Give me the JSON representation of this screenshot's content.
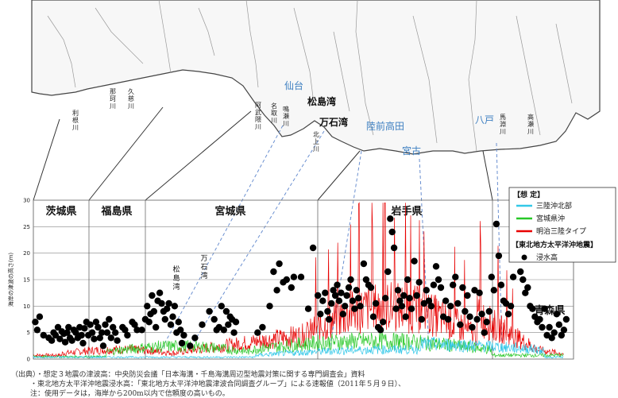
{
  "map": {
    "places": [
      {
        "id": "sendai",
        "text": "仙台",
        "color": "#3d7fc1"
      },
      {
        "id": "matsushima",
        "text": "松島湾",
        "color": "#111"
      },
      {
        "id": "mangoku",
        "text": "万石湾",
        "color": "#111"
      },
      {
        "id": "rikuzen",
        "text": "陸前高田",
        "color": "#3d7fc1"
      },
      {
        "id": "miyako",
        "text": "宮古",
        "color": "#3d7fc1"
      },
      {
        "id": "hachinohe",
        "text": "八戸",
        "color": "#3d7fc1"
      }
    ],
    "rivers": [
      {
        "id": "tone",
        "text": "利根川"
      },
      {
        "id": "naka",
        "text": "那珂川"
      },
      {
        "id": "kuji",
        "text": "久慈川"
      },
      {
        "id": "abukuma",
        "text": "阿武隈川"
      },
      {
        "id": "natori",
        "text": "名取川"
      },
      {
        "id": "naruse",
        "text": "鳴瀬川"
      },
      {
        "id": "kitakami",
        "text": "北上川"
      },
      {
        "id": "mabechi",
        "text": "馬淵川"
      },
      {
        "id": "takase",
        "text": "高瀬川"
      }
    ]
  },
  "chart_data": {
    "type": "scatter",
    "ylabel": "海岸の津波の高さ(m)",
    "ylim": [
      0,
      30
    ],
    "yticks": [
      0,
      5,
      10,
      15,
      20,
      25,
      30
    ],
    "prefectures": [
      "茨城県",
      "福島県",
      "宮城県",
      "岩手県",
      "青森県"
    ],
    "bay_labels": [
      "松島湾",
      "万石湾"
    ],
    "legend": {
      "group1": "【想 定】",
      "group2": "【東北地方太平洋沖地震】",
      "items": [
        {
          "name": "三陸沖北部",
          "color": "#33c8e8",
          "kind": "line"
        },
        {
          "name": "宮城県沖",
          "color": "#28c828",
          "kind": "line"
        },
        {
          "name": "明治三陸タイプ",
          "color": "#e80000",
          "kind": "line"
        },
        {
          "name": "浸水高",
          "color": "#000000",
          "kind": "dot"
        }
      ]
    },
    "series": [
      {
        "name": "浸水高",
        "points": [
          [
            0.4,
            7
          ],
          [
            0.8,
            5.5
          ],
          [
            1.3,
            8
          ],
          [
            2.1,
            4.5
          ],
          [
            3.2,
            4
          ],
          [
            3.8,
            3.5
          ],
          [
            4.2,
            5
          ],
          [
            4.6,
            4.5
          ],
          [
            5.1,
            6
          ],
          [
            5.5,
            3.8
          ],
          [
            5.9,
            5.2
          ],
          [
            6.3,
            4.8
          ],
          [
            6.6,
            3.2
          ],
          [
            7,
            5
          ],
          [
            7.3,
            6
          ],
          [
            7.6,
            4
          ],
          [
            8.0,
            3.5
          ],
          [
            8.4,
            5.5
          ],
          [
            8.8,
            5
          ],
          [
            9.2,
            4
          ],
          [
            9.6,
            6
          ],
          [
            10,
            4.5
          ],
          [
            10.3,
            3
          ],
          [
            10.6,
            5.8
          ],
          [
            11,
            7
          ],
          [
            11.4,
            4.5
          ],
          [
            11.8,
            6.5
          ],
          [
            12.2,
            5
          ],
          [
            12.6,
            3.8
          ],
          [
            13,
            7
          ],
          [
            13.4,
            6
          ],
          [
            13.8,
            4
          ],
          [
            14.2,
            5
          ],
          [
            14.5,
            2.5
          ],
          [
            14.9,
            6.5
          ],
          [
            15.3,
            5
          ],
          [
            15.7,
            7.5
          ],
          [
            16.1,
            4
          ],
          [
            16.5,
            6
          ],
          [
            17.0,
            5
          ],
          [
            17.4,
            3.5
          ],
          [
            18.5,
            6
          ],
          [
            19.0,
            5.5
          ],
          [
            19.5,
            4.5
          ],
          [
            20.5,
            7
          ],
          [
            21.0,
            6.5
          ],
          [
            21.5,
            5.5
          ],
          [
            22.5,
            5.5
          ],
          [
            23.2,
            7.5
          ],
          [
            23.6,
            10
          ],
          [
            24.0,
            7
          ],
          [
            24.3,
            8.5
          ],
          [
            24.6,
            12
          ],
          [
            25.0,
            9
          ],
          [
            25.4,
            6
          ],
          [
            25.8,
            11
          ],
          [
            26.2,
            12.5
          ],
          [
            26.6,
            10.5
          ],
          [
            27.0,
            9
          ],
          [
            27.3,
            7.5
          ],
          [
            27.7,
            9.5
          ],
          [
            28.1,
            10.5
          ],
          [
            28.5,
            6.5
          ],
          [
            28.9,
            8
          ],
          [
            29.3,
            10
          ],
          [
            29.7,
            5
          ],
          [
            30.1,
            7
          ],
          [
            30.5,
            5.5
          ],
          [
            30.8,
            3
          ],
          [
            31.2,
            4.5
          ],
          [
            32.5,
            2.5
          ],
          [
            33.5,
            4
          ],
          [
            35.0,
            6.5
          ],
          [
            36.5,
            9
          ],
          [
            37.5,
            7.5
          ],
          [
            38.0,
            5.5
          ],
          [
            38.5,
            6
          ],
          [
            39.0,
            10
          ],
          [
            39.5,
            5.5
          ],
          [
            40.0,
            9
          ],
          [
            40.4,
            6.5
          ],
          [
            40.8,
            8
          ],
          [
            41.2,
            7.5
          ],
          [
            41.6,
            5
          ],
          [
            42.0,
            7
          ],
          [
            46.5,
            5
          ],
          [
            47.5,
            6
          ],
          [
            49.0,
            10
          ],
          [
            49.8,
            16.5
          ],
          [
            50.5,
            13
          ],
          [
            51.0,
            18
          ],
          [
            51.8,
            14.5
          ],
          [
            52.5,
            15
          ],
          [
            53.5,
            13.5
          ],
          [
            54.0,
            15.5
          ],
          [
            55.5,
            15.5
          ],
          [
            57.0,
            9.5
          ],
          [
            58.0,
            21
          ],
          [
            59.0,
            12
          ],
          [
            59.5,
            8.5
          ],
          [
            60.0,
            11
          ],
          [
            60.5,
            12.5
          ],
          [
            61.0,
            9
          ],
          [
            61.3,
            7.5
          ],
          [
            61.8,
            10.5
          ],
          [
            62.2,
            13
          ],
          [
            62.6,
            12
          ],
          [
            63.0,
            14
          ],
          [
            63.4,
            11
          ],
          [
            63.8,
            12.5
          ],
          [
            64.2,
            8.5
          ],
          [
            64.6,
            10
          ],
          [
            65.0,
            12
          ],
          [
            65.4,
            13.5
          ],
          [
            65.8,
            15
          ],
          [
            66.2,
            11
          ],
          [
            66.6,
            9.5
          ],
          [
            67.0,
            13
          ],
          [
            67.4,
            11.5
          ],
          [
            67.8,
            10
          ],
          [
            68.5,
            18
          ],
          [
            69.0,
            15
          ],
          [
            69.5,
            14
          ],
          [
            70.0,
            13.5
          ],
          [
            70.5,
            8
          ],
          [
            71.0,
            10.5
          ],
          [
            71.5,
            6
          ],
          [
            72.0,
            5.5
          ],
          [
            72.5,
            7
          ],
          [
            73.0,
            11.5
          ],
          [
            73.5,
            16.5
          ],
          [
            74.0,
            26.5
          ],
          [
            74.4,
            24
          ],
          [
            74.8,
            21
          ],
          [
            75.2,
            9.5
          ],
          [
            75.6,
            13
          ],
          [
            76.0,
            11
          ],
          [
            76.4,
            10
          ],
          [
            76.8,
            12
          ],
          [
            77.2,
            8
          ],
          [
            77.6,
            15
          ],
          [
            78.0,
            11.5
          ],
          [
            78.4,
            9.5
          ],
          [
            79.0,
            18.5
          ],
          [
            79.5,
            12
          ],
          [
            80.0,
            14.5
          ],
          [
            80.5,
            7.5
          ],
          [
            81.0,
            10.5
          ],
          [
            81.5,
            13
          ],
          [
            82.0,
            11
          ],
          [
            82.5,
            10
          ],
          [
            83.0,
            14
          ],
          [
            83.5,
            17.5
          ],
          [
            84.0,
            15
          ],
          [
            84.5,
            13.5
          ],
          [
            85.0,
            8
          ],
          [
            85.5,
            11
          ],
          [
            86.0,
            7.5
          ],
          [
            86.5,
            10
          ],
          [
            87.0,
            14
          ],
          [
            87.5,
            15.5
          ],
          [
            88.0,
            10.5
          ],
          [
            88.5,
            6.5
          ],
          [
            89.0,
            13.5
          ],
          [
            89.5,
            9
          ],
          [
            90.0,
            12
          ],
          [
            90.5,
            8
          ],
          [
            91.0,
            6
          ],
          [
            91.5,
            13
          ],
          [
            92.0,
            7.5
          ],
          [
            92.5,
            12.5
          ],
          [
            93.0,
            8.5
          ],
          [
            93.5,
            5
          ],
          [
            94.0,
            7
          ],
          [
            94.5,
            9
          ],
          [
            95.0,
            15.5
          ],
          [
            95.5,
            13
          ],
          [
            96.0,
            25.5
          ],
          [
            96.5,
            19.5
          ],
          [
            97.0,
            14
          ],
          [
            97.5,
            11
          ],
          [
            98.0,
            10.5
          ],
          [
            98.5,
            8.5
          ],
          [
            99.0,
            10
          ],
          [
            99.5,
            15.5
          ],
          [
            100.0,
            23.5
          ],
          [
            100.5,
            20
          ],
          [
            101.0,
            16.5
          ],
          [
            101.5,
            15
          ],
          [
            102.0,
            12.5
          ],
          [
            102.5,
            13.5
          ],
          [
            103.0,
            10
          ],
          [
            103.5,
            9.5
          ],
          [
            104.0,
            8
          ],
          [
            104.5,
            7
          ],
          [
            105.0,
            7.5
          ],
          [
            105.5,
            6
          ],
          [
            106.0,
            9.5
          ],
          [
            106.5,
            4.5
          ],
          [
            107.0,
            6
          ],
          [
            107.5,
            4
          ],
          [
            108.0,
            5
          ],
          [
            108.5,
            8.5
          ],
          [
            109.0,
            6.5
          ],
          [
            109.5,
            4.5
          ],
          [
            110.0,
            5.5
          ],
          [
            110.5,
            7.5
          ]
        ]
      }
    ]
  },
  "footnote": {
    "line1": "（出典）・想定３地震の津波高：中央防災会議「日本海溝・千島海溝周辺型地震対策に関する専門調査会」資料",
    "line2": "・東北地方太平洋沖地震浸水高：「東北地方太平洋沖地震津波合同調査グループ」による速報値（2011年５月９日）、",
    "line3": "注：使用データは，海岸から200m以内で信頼度の高いもの。"
  }
}
